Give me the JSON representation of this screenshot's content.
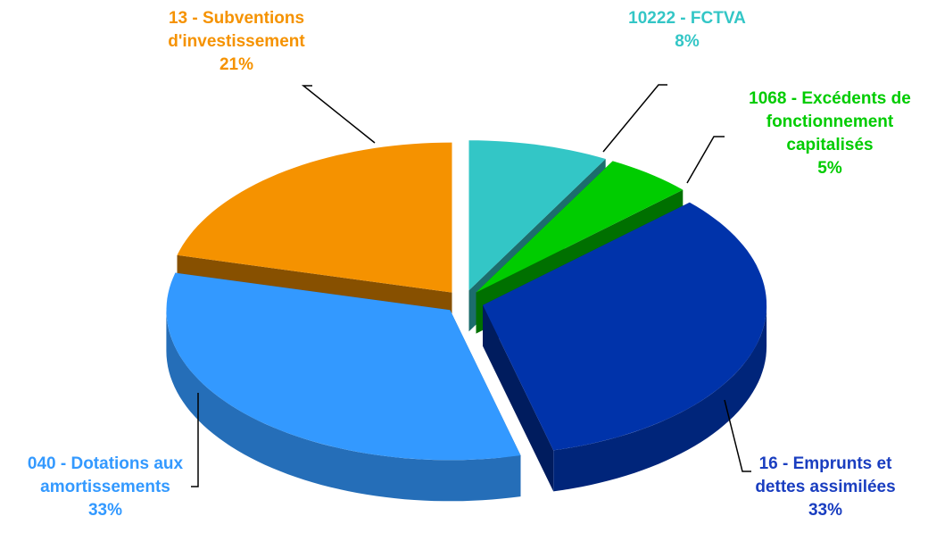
{
  "chart_data": {
    "type": "pie",
    "categories": [
      "10222 - FCTVA",
      "1068 - Excédents de fonctionnement capitalisés",
      "16 - Emprunts et dettes assimilées",
      "040 - Dotations aux amortissements",
      "13 - Subventions d'investissement"
    ],
    "values": [
      8,
      5,
      33,
      33,
      21
    ],
    "value_labels": [
      "8%",
      "5%",
      "33%",
      "33%",
      "21%"
    ],
    "colors": [
      "#33c6c6",
      "#00cc00",
      "#0033aa",
      "#3399ff",
      "#f59200"
    ]
  }
}
